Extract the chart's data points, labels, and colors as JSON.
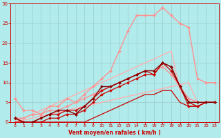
{
  "bg_color": "#b2ebeb",
  "grid_color": "#c8e8e8",
  "xlabel": "Vent moyen/en rafales ( km/h )",
  "xlabel_color": "#cc0000",
  "tick_color": "#cc0000",
  "xlim": [
    -0.5,
    23.5
  ],
  "ylim": [
    0,
    30
  ],
  "yticks": [
    0,
    5,
    10,
    15,
    20,
    25,
    30
  ],
  "xticks": [
    0,
    1,
    2,
    3,
    4,
    5,
    6,
    7,
    8,
    9,
    10,
    11,
    12,
    13,
    14,
    15,
    16,
    17,
    18,
    19,
    20,
    21,
    22,
    23
  ],
  "lines": [
    {
      "x": [
        0,
        1,
        2,
        3,
        4,
        5,
        6,
        7,
        8,
        9,
        10,
        11,
        12,
        13,
        14,
        15,
        16,
        17,
        18,
        19,
        20,
        21,
        22,
        23
      ],
      "y": [
        0,
        0.5,
        1,
        1.5,
        2,
        2.5,
        3,
        3.5,
        4,
        4.5,
        5,
        5.5,
        6,
        6.5,
        7,
        7.5,
        8,
        8.5,
        9,
        9.5,
        10,
        5,
        5,
        5
      ],
      "color": "#ffb0b0",
      "lw": 1.0,
      "marker": null,
      "ms": 0
    },
    {
      "x": [
        0,
        1,
        2,
        3,
        4,
        5,
        6,
        7,
        8,
        9,
        10,
        11,
        12,
        13,
        14,
        15,
        16,
        17,
        18,
        19,
        20,
        21,
        22,
        23
      ],
      "y": [
        0,
        1,
        2,
        3,
        4,
        5,
        6,
        7,
        8,
        9,
        10,
        11,
        12,
        13,
        14,
        15,
        16,
        17,
        18,
        8,
        6,
        5,
        5,
        5
      ],
      "color": "#ffb0b0",
      "lw": 1.0,
      "marker": null,
      "ms": 0
    },
    {
      "x": [
        0,
        1,
        2,
        3,
        4,
        5,
        6,
        7,
        8,
        9,
        10,
        11,
        12,
        13,
        14,
        15,
        16,
        17,
        18,
        19,
        20,
        21,
        22,
        23
      ],
      "y": [
        1,
        1,
        2,
        2,
        4,
        4,
        6,
        5,
        7,
        9,
        11,
        13,
        18,
        23,
        27,
        27,
        27,
        29,
        27,
        25,
        24,
        11,
        10,
        10
      ],
      "color": "#ff9090",
      "lw": 1.0,
      "marker": "D",
      "ms": 2.0
    },
    {
      "x": [
        0,
        1,
        2,
        3,
        4,
        5,
        6,
        7,
        8,
        9,
        10,
        11,
        12,
        13,
        14,
        15,
        16,
        17,
        18,
        19,
        20,
        21,
        22,
        23
      ],
      "y": [
        6,
        3,
        3,
        2,
        3,
        3,
        4,
        5,
        6,
        7,
        8,
        9,
        10,
        11,
        12,
        13,
        13,
        14,
        12,
        9,
        6,
        5,
        5,
        5
      ],
      "color": "#ff9090",
      "lw": 1.0,
      "marker": "D",
      "ms": 2.0
    },
    {
      "x": [
        0,
        1,
        2,
        3,
        4,
        5,
        6,
        7,
        8,
        9,
        10,
        11,
        12,
        13,
        14,
        15,
        16,
        17,
        18,
        19,
        20,
        21,
        22,
        23
      ],
      "y": [
        1,
        0,
        0,
        0,
        1,
        1,
        2,
        2,
        3,
        5,
        7,
        8,
        9,
        10,
        11,
        12,
        12,
        15,
        14,
        9,
        4,
        4,
        5,
        5
      ],
      "color": "#cc0000",
      "lw": 0.9,
      "marker": "D",
      "ms": 2.0
    },
    {
      "x": [
        0,
        1,
        2,
        3,
        4,
        5,
        6,
        7,
        8,
        9,
        10,
        11,
        12,
        13,
        14,
        15,
        16,
        17,
        18,
        19,
        20,
        21,
        22,
        23
      ],
      "y": [
        1,
        0,
        0,
        1,
        2,
        2,
        3,
        3,
        4,
        6,
        8,
        9,
        10,
        11,
        12,
        13,
        12,
        15,
        13,
        9,
        5,
        4,
        5,
        5
      ],
      "color": "#cc0000",
      "lw": 0.9,
      "marker": "D",
      "ms": 2.0
    },
    {
      "x": [
        0,
        1,
        2,
        3,
        4,
        5,
        6,
        7,
        8,
        9,
        10,
        11,
        12,
        13,
        14,
        15,
        16,
        17,
        18,
        19,
        20,
        21,
        22,
        23
      ],
      "y": [
        1,
        0,
        0,
        1,
        2,
        3,
        3,
        2,
        4,
        6,
        9,
        9,
        10,
        11,
        12,
        13,
        13,
        15,
        14,
        9,
        5,
        5,
        5,
        5
      ],
      "color": "#880000",
      "lw": 1.0,
      "marker": "D",
      "ms": 2.0
    },
    {
      "x": [
        0,
        1,
        2,
        3,
        4,
        5,
        6,
        7,
        8,
        9,
        10,
        11,
        12,
        13,
        14,
        15,
        16,
        17,
        18,
        19,
        20,
        21,
        22,
        23
      ],
      "y": [
        0,
        0,
        0,
        0,
        0,
        0,
        0,
        0,
        0,
        1,
        2,
        3,
        4,
        5,
        6,
        7,
        7,
        8,
        8,
        5,
        4,
        4,
        5,
        5
      ],
      "color": "#cc0000",
      "lw": 0.9,
      "marker": null,
      "ms": 0
    }
  ]
}
